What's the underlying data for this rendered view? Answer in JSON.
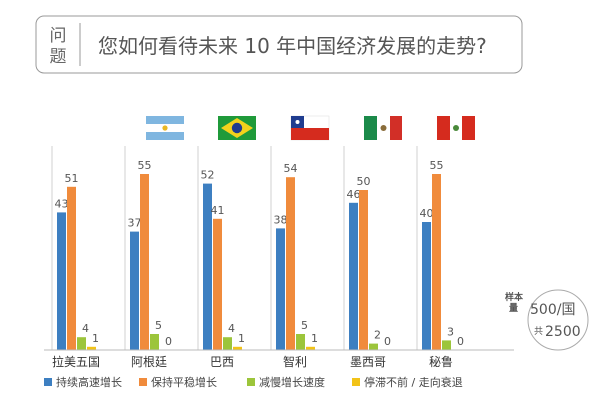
{
  "question": {
    "label_line1": "问",
    "label_line2": "题",
    "text": "您如何看待未来 10 年中国经济发展的走势?"
  },
  "colors": {
    "rapid": "#3d7fc1",
    "steady": "#f08b3c",
    "slow": "#9cc53b",
    "stagnant": "#f2c318"
  },
  "sample": {
    "label_top": "样本",
    "label_bottom": "量",
    "count_line1": "500/国",
    "count_prefix": "共",
    "count_total": "2500"
  },
  "flags": [
    "argentina-flag",
    "brazil-flag",
    "chile-flag",
    "mexico-flag",
    "peru-flag"
  ],
  "chart_data": {
    "type": "bar",
    "categories": [
      "拉美五国",
      "阿根廷",
      "巴西",
      "智利",
      "墨西哥",
      "秘鲁"
    ],
    "series": [
      {
        "name": "持续高速增长",
        "values": [
          43,
          37,
          52,
          38,
          46,
          40
        ]
      },
      {
        "name": "保持平稳增长",
        "values": [
          51,
          55,
          41,
          54,
          50,
          55
        ]
      },
      {
        "name": "减慢增长速度",
        "values": [
          4,
          5,
          4,
          5,
          2,
          3
        ]
      },
      {
        "name": "停滞不前 / 走向衰退",
        "values": [
          1,
          0,
          1,
          1,
          0,
          0
        ]
      }
    ],
    "ylim": [
      0,
      60
    ],
    "legend_position": "bottom-left",
    "grid": false
  }
}
